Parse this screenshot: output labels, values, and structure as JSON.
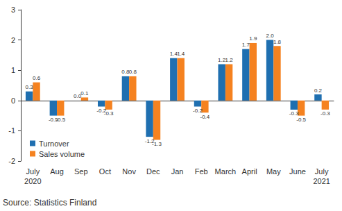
{
  "chart_data": {
    "type": "bar",
    "categories": [
      "July\n2020",
      "Aug",
      "Sep",
      "Oct",
      "Nov",
      "Dec",
      "Jan",
      "Feb",
      "March",
      "April",
      "May",
      "June",
      "July\n2021"
    ],
    "series": [
      {
        "name": "Turnover",
        "color": "#1f6fb0",
        "values": [
          0.3,
          -0.5,
          0.0,
          -0.2,
          0.8,
          -1.2,
          1.4,
          -0.2,
          1.2,
          1.7,
          2.0,
          -0.3,
          0.2
        ],
        "value_labels": [
          "0.3",
          "-0.5",
          "0.0",
          "-0.2",
          "0.8",
          "-1.2",
          "1.4",
          "-0.2",
          "1.2",
          "1.7",
          "2.0",
          "-0.3",
          "0.2"
        ]
      },
      {
        "name": "Sales volume",
        "color": "#f58220",
        "values": [
          0.6,
          -0.5,
          0.1,
          -0.3,
          0.8,
          -1.3,
          1.4,
          -0.4,
          1.2,
          1.9,
          1.8,
          -0.5,
          -0.3
        ],
        "value_labels": [
          "0.6",
          "-0.5",
          "0.1",
          "-0.3",
          "0.8",
          "-1.3",
          "1.4",
          "-0.4",
          "1.2",
          "1.9",
          "1.8",
          "-0.5",
          "-0.3"
        ]
      }
    ],
    "ylim": [
      -2,
      3
    ],
    "yticks": [
      -2,
      -1,
      0,
      1,
      2,
      3
    ],
    "grid": false,
    "legend": "lower left",
    "data_labels": true,
    "annotations": [
      "Source: Statistics Finland"
    ]
  }
}
